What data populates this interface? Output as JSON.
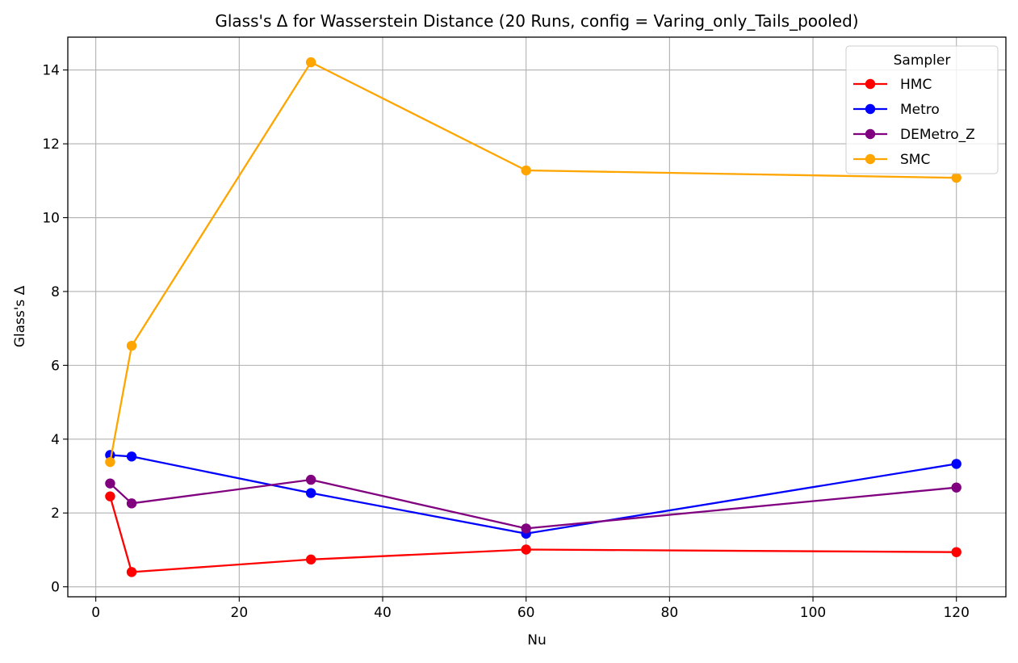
{
  "chart_data": {
    "type": "line",
    "title": "Glass's Δ for Wasserstein Distance (20 Runs, config = Varing_only_Tails_pooled)",
    "xlabel": "Nu",
    "ylabel": "Glass's Δ",
    "xlim": [
      -3.9,
      126.9
    ],
    "ylim": [
      -0.27,
      14.89
    ],
    "xticks": [
      0,
      20,
      40,
      60,
      80,
      100,
      120
    ],
    "yticks": [
      0,
      2,
      4,
      6,
      8,
      10,
      12,
      14
    ],
    "grid": true,
    "legend": {
      "title": "Sampler",
      "placement": "upper right"
    },
    "series": [
      {
        "name": "HMC",
        "color": "#ff0000",
        "x": [
          2,
          5,
          30,
          60,
          120
        ],
        "y": [
          2.45,
          0.4,
          0.74,
          1.01,
          0.94
        ]
      },
      {
        "name": "Metro",
        "color": "#0000ff",
        "x": [
          2,
          5,
          30,
          60,
          120
        ],
        "y": [
          3.57,
          3.53,
          2.54,
          1.44,
          3.33
        ]
      },
      {
        "name": "DEMetro_Z",
        "color": "#800080",
        "x": [
          2,
          5,
          30,
          60,
          120
        ],
        "y": [
          2.8,
          2.26,
          2.9,
          1.58,
          2.69
        ]
      },
      {
        "name": "SMC",
        "color": "#ffa500",
        "x": [
          2,
          5,
          30,
          60,
          120
        ],
        "y": [
          3.38,
          6.53,
          14.21,
          11.28,
          11.08
        ]
      }
    ]
  }
}
